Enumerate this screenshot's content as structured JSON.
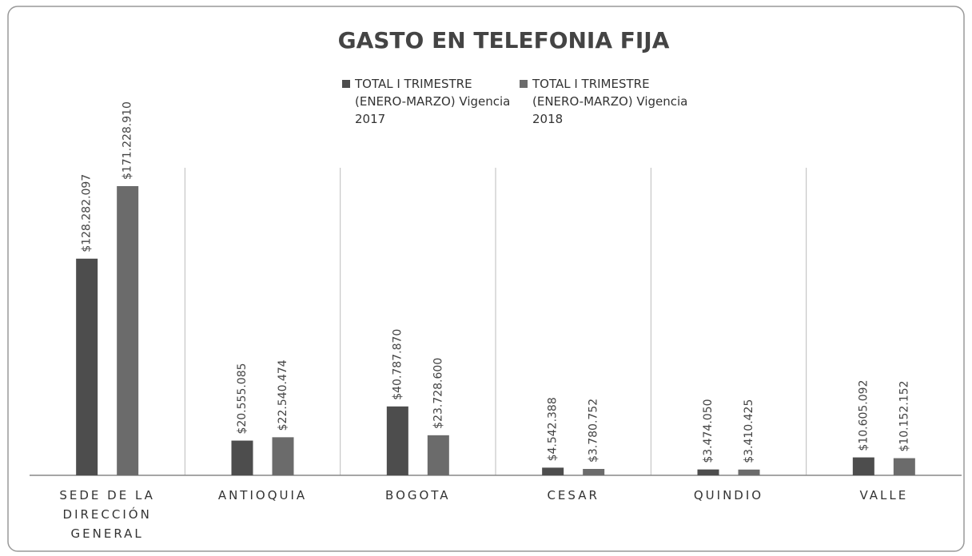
{
  "chart_data": {
    "type": "bar",
    "title": "GASTO EN TELEFONIA FIJA",
    "categories": [
      "SEDE DE LA DIRECCIÓN GENERAL",
      "ANTIOQUIA",
      "BOGOTA",
      "CESAR",
      "QUINDIO",
      "VALLE"
    ],
    "series": [
      {
        "name": "TOTAL I TRIMESTRE (ENERO-MARZO) Vigencia 2017",
        "color": "#4d4d4d",
        "values": [
          128282097,
          20555085,
          40787870,
          4542388,
          3474050,
          10605092
        ],
        "value_labels": [
          "$128.282.097",
          "$20.555.085",
          "$40.787.870",
          "$4.542.388",
          "$3.474.050",
          "$10.605.092"
        ]
      },
      {
        "name": "TOTAL I TRIMESTRE (ENERO-MARZO) Vigencia 2018",
        "color": "#6b6b6b",
        "values": [
          171228910,
          22540474,
          23728600,
          3780752,
          3410425,
          10152152
        ],
        "value_labels": [
          "$171.228.910",
          "$22.540.474",
          "$23.728.600",
          "$3.780.752",
          "$3.410.425",
          "$10.152.152"
        ]
      }
    ]
  }
}
